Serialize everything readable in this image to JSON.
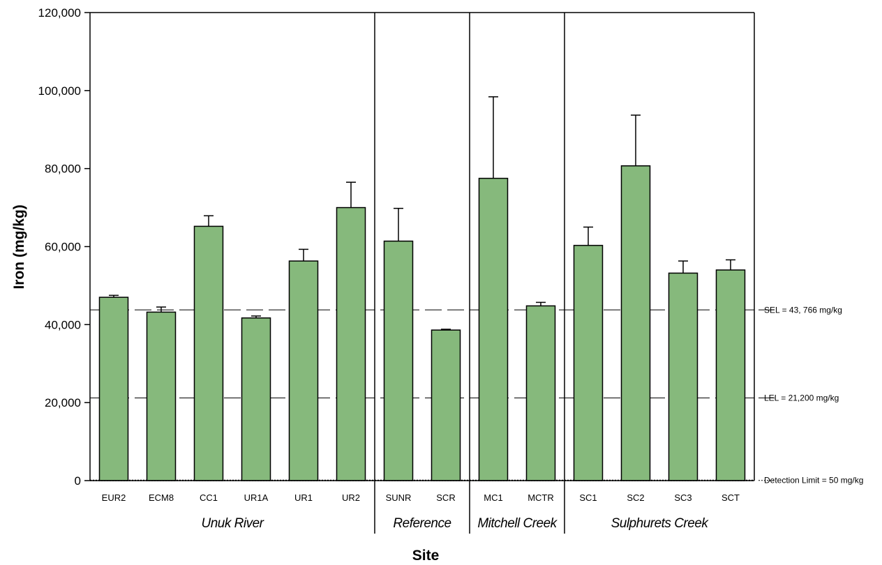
{
  "chart_data": {
    "type": "bar",
    "title": "",
    "xlabel": "Site",
    "ylabel": "Iron (mg/kg)",
    "ylim": [
      0,
      120000
    ],
    "yticks": [
      0,
      20000,
      40000,
      60000,
      80000,
      100000,
      120000
    ],
    "ytick_labels": [
      "0",
      "20,000",
      "40,000",
      "60,000",
      "80,000",
      "100,000",
      "120,000"
    ],
    "grid": false,
    "bar_color": "#86b97c",
    "categories": [
      "EUR2",
      "ECM8",
      "CC1",
      "UR1A",
      "UR1",
      "UR2",
      "SUNR",
      "SCR",
      "MC1",
      "MCTR",
      "SC1",
      "SC2",
      "SC3",
      "SCT"
    ],
    "values": [
      47000,
      43200,
      65200,
      41700,
      56300,
      70000,
      61400,
      38600,
      77500,
      44800,
      60300,
      80700,
      53200,
      54000
    ],
    "error_upper": [
      47500,
      44500,
      67900,
      42200,
      59300,
      76500,
      69800,
      38800,
      98400,
      45700,
      65000,
      93700,
      56300,
      56600
    ],
    "groups": [
      {
        "name": "Unuk River",
        "categories": [
          "EUR2",
          "ECM8",
          "CC1",
          "UR1A",
          "UR1",
          "UR2"
        ]
      },
      {
        "name": "Reference",
        "categories": [
          "SUNR",
          "SCR"
        ]
      },
      {
        "name": "Mitchell Creek",
        "categories": [
          "MC1",
          "MCTR"
        ]
      },
      {
        "name": "Sulphurets Creek",
        "categories": [
          "SC1",
          "SC2",
          "SC3",
          "SCT"
        ]
      }
    ],
    "reference_lines": [
      {
        "value": 43766,
        "label": "SEL =  43, 766  mg/kg",
        "style": "dashed"
      },
      {
        "value": 21200,
        "label": "LEL =  21,200 mg/kg",
        "style": "dashed"
      },
      {
        "value": 50,
        "label": "Detection Limit = 50 mg/kg",
        "style": "dotted"
      }
    ]
  }
}
